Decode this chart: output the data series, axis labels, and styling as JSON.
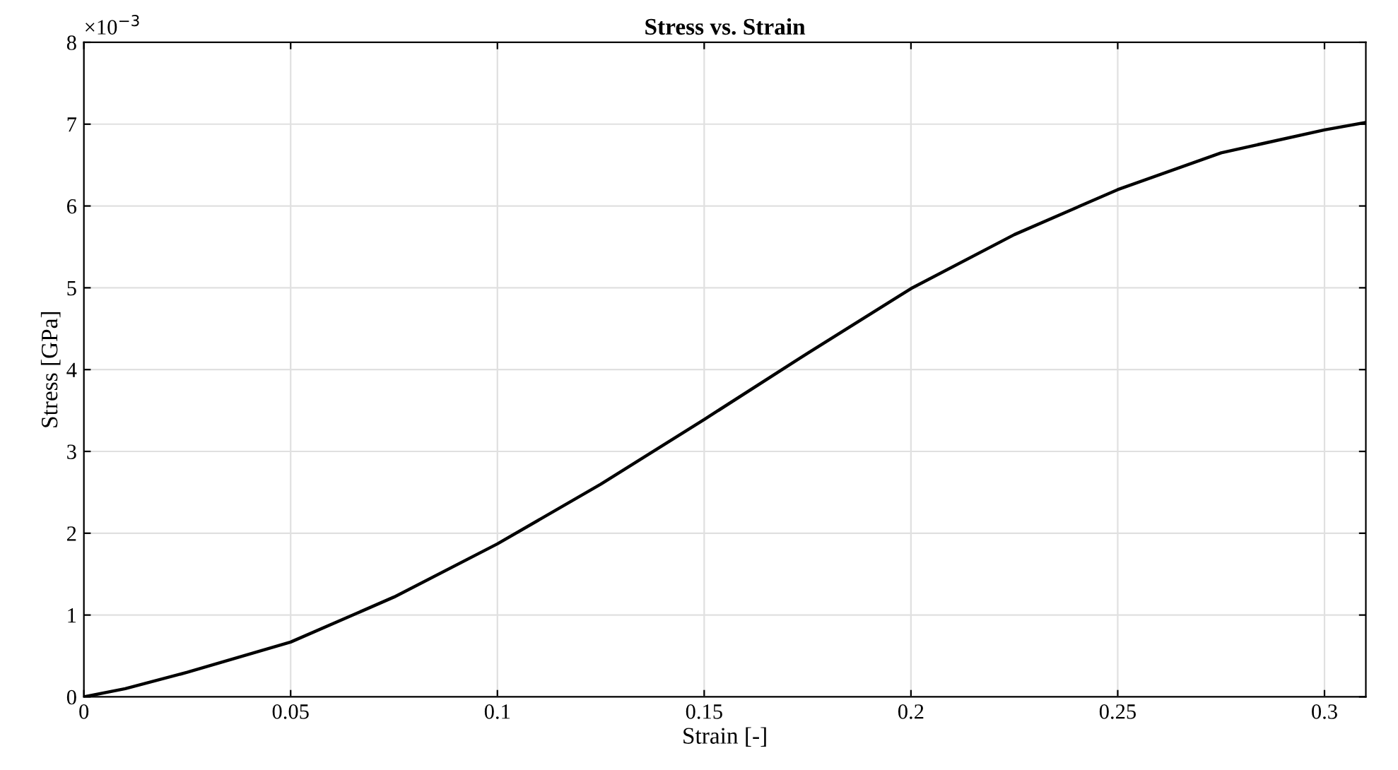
{
  "chart_data": {
    "type": "line",
    "title": "Stress vs. Strain",
    "xlabel": "Strain [-]",
    "ylabel": "Stress [GPa]",
    "annotations": [
      "×10$^{−3}$"
    ],
    "x": [
      0,
      0.01,
      0.025,
      0.05,
      0.075,
      0.1,
      0.125,
      0.15,
      0.175,
      0.2,
      0.225,
      0.25,
      0.275,
      0.3,
      0.31
    ],
    "series": [
      {
        "color": "#000000",
        "values": [
          0,
          0.1,
          0.3,
          0.67,
          1.22,
          1.87,
          2.6,
          3.39,
          4.2,
          4.99,
          5.65,
          6.2,
          6.65,
          6.93,
          7.02
        ]
      }
    ],
    "xlim": [
      0,
      0.31
    ],
    "xticks": [
      0,
      0.05,
      0.1,
      0.15,
      0.2,
      0.25,
      0.3
    ],
    "ylim": [
      0,
      8
    ],
    "yticks": [
      0,
      1,
      2,
      3,
      4,
      5,
      6,
      7,
      8
    ],
    "grid": true,
    "legend": false,
    "line_style": "solid",
    "marker": "none"
  }
}
